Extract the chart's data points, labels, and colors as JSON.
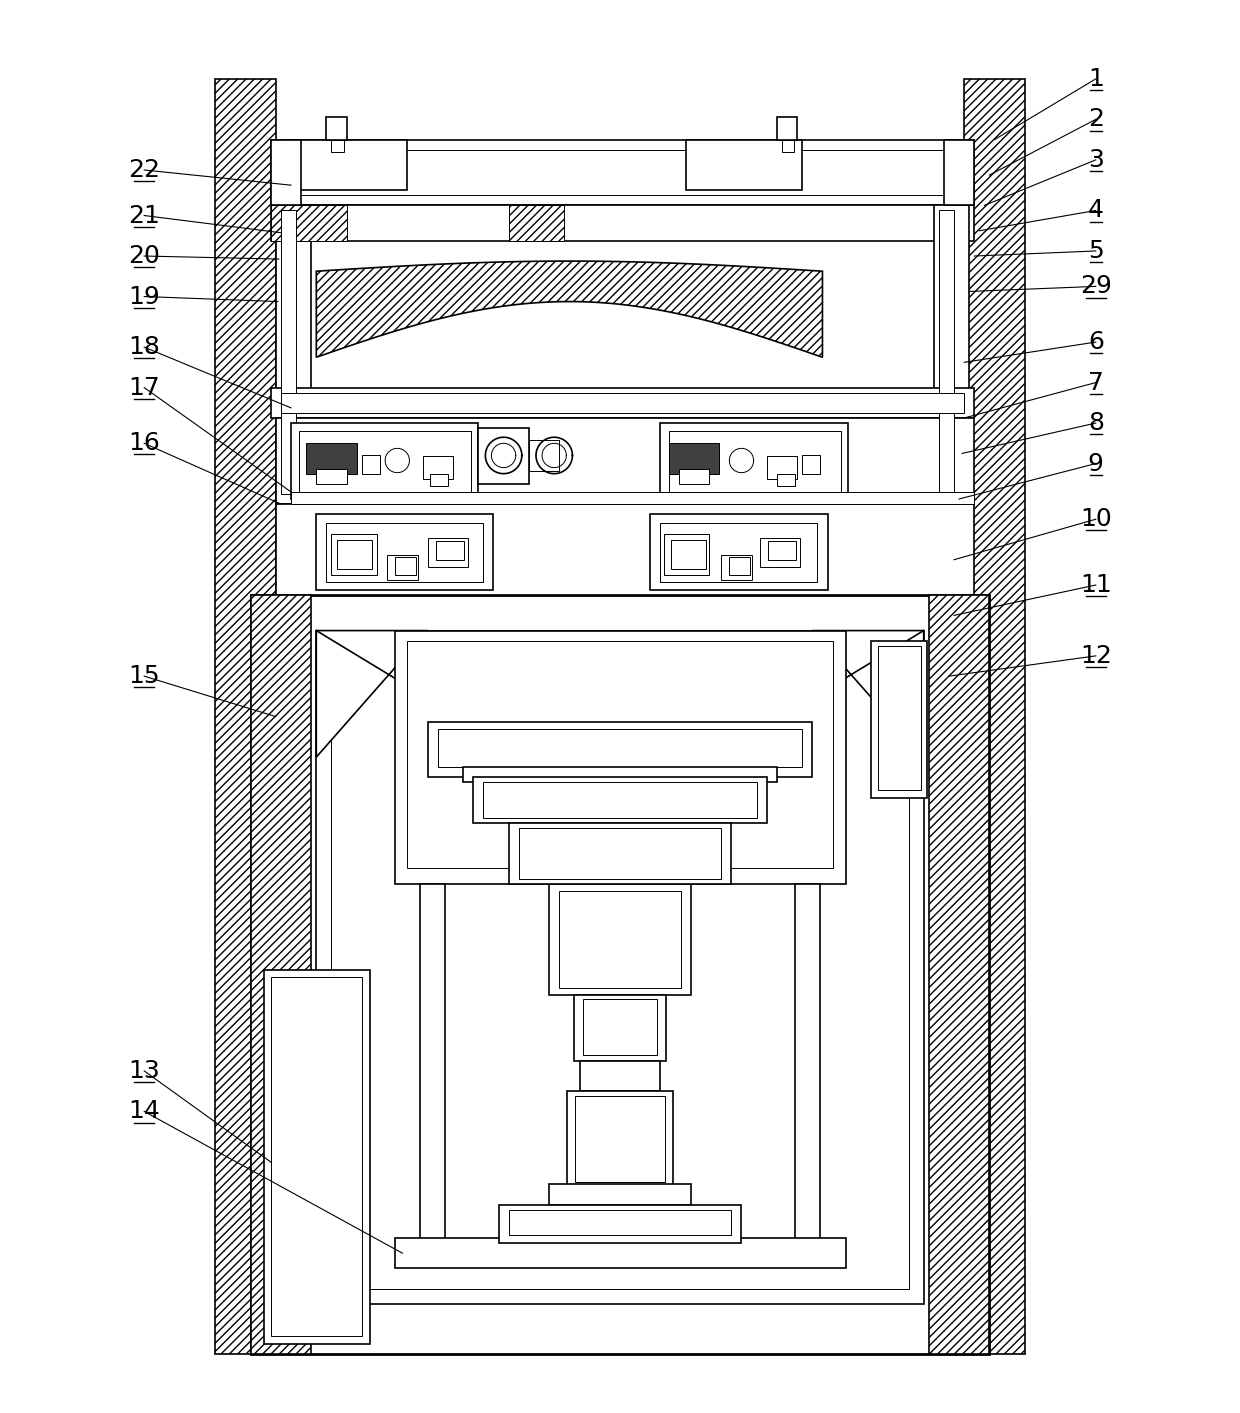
{
  "bg_color": "#ffffff",
  "line_color": "#000000",
  "label_color": "#000000",
  "figsize": [
    12.4,
    14.13
  ],
  "dpi": 100,
  "lw_main": 1.2,
  "lw_thick": 2.0,
  "lw_thin": 0.7,
  "lw_label": 0.8
}
